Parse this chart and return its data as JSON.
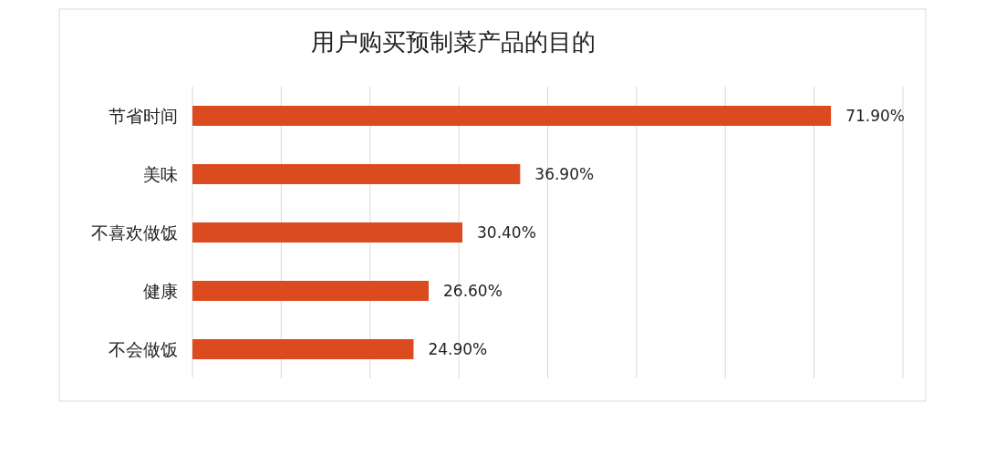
{
  "chart_data": {
    "type": "bar",
    "orientation": "horizontal",
    "title": "用户购买预制菜产品的目的",
    "categories": [
      "节省时间",
      "美味",
      "不喜欢做饭",
      "健康",
      "不会做饭"
    ],
    "values": [
      71.9,
      36.9,
      30.4,
      26.6,
      24.9
    ],
    "value_labels": [
      "71.90%",
      "36.90%",
      "30.40%",
      "26.60%",
      "24.90%"
    ],
    "color": "#dc4a1f",
    "xlim": [
      0,
      80
    ],
    "xticks": [
      {
        "value": 0,
        "label": null
      },
      {
        "value": 10,
        "label": null
      },
      {
        "value": 20,
        "label": null
      },
      {
        "value": 30,
        "label": null
      },
      {
        "value": 40,
        "label": null
      },
      {
        "value": 50,
        "label": null
      },
      {
        "value": 60,
        "label": null
      },
      {
        "value": 70,
        "label": null
      },
      {
        "value": 80,
        "label": null
      }
    ],
    "grid": "x",
    "tick_labels": "y"
  }
}
